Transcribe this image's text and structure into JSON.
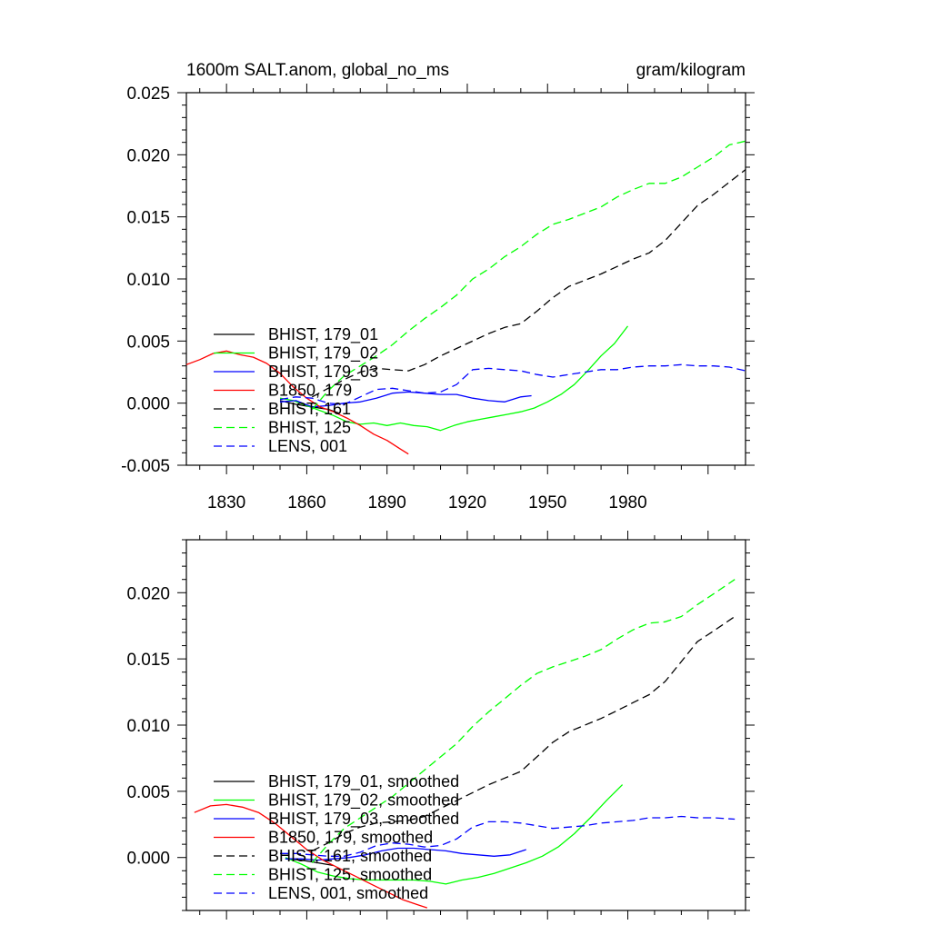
{
  "chart_data": [
    {
      "type": "line",
      "title_left": "1600m SALT.anom, global_no_ms",
      "title_right": "gram/kilogram",
      "xlim": [
        1815,
        2024
      ],
      "ylim": [
        -0.005,
        0.025
      ],
      "x_ticks": [
        "1830",
        "1860",
        "1890",
        "1920",
        "1950",
        "1980"
      ],
      "y_ticks": [
        "-0.005",
        "0.000",
        "0.005",
        "0.010",
        "0.015",
        "0.020",
        "0.025"
      ],
      "grid": false,
      "legend_position": "lower-left",
      "series": [
        {
          "name": "BHIST, 179_01",
          "color": "#000000",
          "style": "solid",
          "x": [
            1850,
            1856,
            1862,
            1868,
            1872
          ],
          "y": [
            0.0002,
            -0.0001,
            -0.0003,
            -0.0005,
            -0.0008
          ]
        },
        {
          "name": "BHIST, 179_02",
          "color": "#00ff00",
          "style": "solid",
          "x": [
            1850,
            1855,
            1860,
            1865,
            1870,
            1875,
            1880,
            1885,
            1890,
            1895,
            1900,
            1905,
            1910,
            1915,
            1920,
            1925,
            1930,
            1935,
            1940,
            1945,
            1950,
            1955,
            1960,
            1965,
            1970,
            1975,
            1980
          ],
          "y": [
            0.0004,
            0.0002,
            -0.0002,
            -0.0006,
            -0.001,
            -0.0015,
            -0.0017,
            -0.0016,
            -0.0018,
            -0.0016,
            -0.0018,
            -0.0019,
            -0.0022,
            -0.0018,
            -0.0015,
            -0.0013,
            -0.0011,
            -0.0009,
            -0.0007,
            -0.0004,
            0.0001,
            0.0007,
            0.0015,
            0.0026,
            0.0038,
            0.0048,
            0.0062
          ]
        },
        {
          "name": "BHIST, 179_03",
          "color": "#0000ff",
          "style": "solid",
          "x": [
            1850,
            1856,
            1862,
            1868,
            1874,
            1880,
            1886,
            1892,
            1898,
            1904,
            1910,
            1916,
            1922,
            1928,
            1934,
            1940,
            1944
          ],
          "y": [
            0.0001,
            0.0002,
            -0.0003,
            -0.0002,
            0.0,
            0.0001,
            0.0004,
            0.0008,
            0.0009,
            0.0008,
            0.0007,
            0.0007,
            0.0004,
            0.0002,
            0.0001,
            0.0005,
            0.0006
          ]
        },
        {
          "name": "B1850, 179",
          "color": "#ff0000",
          "style": "solid",
          "x": [
            1815,
            1820,
            1825,
            1830,
            1835,
            1840,
            1845,
            1850,
            1855,
            1860,
            1865,
            1870,
            1875,
            1880,
            1885,
            1890,
            1895,
            1898
          ],
          "y": [
            0.0031,
            0.0035,
            0.004,
            0.0042,
            0.0039,
            0.0037,
            0.0032,
            0.0024,
            0.0013,
            0.0004,
            -0.0003,
            -0.0007,
            -0.0012,
            -0.0018,
            -0.0025,
            -0.003,
            -0.0037,
            -0.0041
          ]
        },
        {
          "name": "BHIST, 161",
          "color": "#000000",
          "style": "dashed",
          "x": [
            1862,
            1868,
            1874,
            1880,
            1886,
            1892,
            1898,
            1904,
            1910,
            1916,
            1922,
            1928,
            1934,
            1940,
            1946,
            1952,
            1958,
            1964,
            1970,
            1976,
            1982,
            1988,
            1994,
            2000,
            2006,
            2012,
            2018,
            2024
          ],
          "y": [
            0.0005,
            0.0012,
            0.0019,
            0.0025,
            0.0028,
            0.0027,
            0.0026,
            0.0031,
            0.0038,
            0.0044,
            0.005,
            0.0056,
            0.0061,
            0.0064,
            0.0074,
            0.0085,
            0.0094,
            0.0099,
            0.0104,
            0.011,
            0.0116,
            0.0121,
            0.0131,
            0.0145,
            0.0159,
            0.0168,
            0.0178,
            0.0188
          ]
        },
        {
          "name": "BHIST, 125",
          "color": "#00ff00",
          "style": "dashed",
          "x": [
            1862,
            1868,
            1874,
            1880,
            1886,
            1892,
            1898,
            1904,
            1910,
            1916,
            1922,
            1928,
            1934,
            1940,
            1946,
            1952,
            1958,
            1964,
            1970,
            1976,
            1982,
            1988,
            1994,
            2000,
            2006,
            2012,
            2018,
            2024
          ],
          "y": [
            -0.0005,
            0.001,
            0.0022,
            0.003,
            0.0038,
            0.0047,
            0.0058,
            0.0068,
            0.0077,
            0.0087,
            0.01,
            0.0108,
            0.0118,
            0.0126,
            0.0136,
            0.0144,
            0.0148,
            0.0153,
            0.0158,
            0.0166,
            0.0172,
            0.0177,
            0.0177,
            0.0182,
            0.019,
            0.0198,
            0.0208,
            0.0211
          ]
        },
        {
          "name": "LENS, 001",
          "color": "#0000ff",
          "style": "dashed",
          "x": [
            1850,
            1856,
            1862,
            1868,
            1874,
            1880,
            1886,
            1892,
            1898,
            1904,
            1910,
            1916,
            1922,
            1928,
            1934,
            1940,
            1946,
            1952,
            1958,
            1964,
            1970,
            1976,
            1982,
            1988,
            1994,
            2000,
            2006,
            2012,
            2018,
            2024
          ],
          "y": [
            0.0003,
            0.0005,
            0.0004,
            0.0,
            -0.0001,
            0.0005,
            0.0011,
            0.0012,
            0.001,
            0.0008,
            0.0009,
            0.0015,
            0.0027,
            0.0028,
            0.0027,
            0.0026,
            0.0023,
            0.0021,
            0.0023,
            0.0025,
            0.0027,
            0.0027,
            0.0029,
            0.003,
            0.003,
            0.0031,
            0.003,
            0.003,
            0.0029,
            0.0026
          ]
        }
      ]
    },
    {
      "type": "line",
      "xlim": [
        1815,
        2024
      ],
      "ylim": [
        -0.004,
        0.024
      ],
      "x_ticks": [],
      "y_ticks": [
        "0.000",
        "0.005",
        "0.010",
        "0.015",
        "0.020"
      ],
      "grid": false,
      "legend_position": "lower-left",
      "series": [
        {
          "name": "BHIST, 179_01, smoothed",
          "color": "#000000",
          "style": "solid",
          "x": [
            1852,
            1858,
            1864,
            1870
          ],
          "y": [
            -0.0001,
            -0.0002,
            -0.0004,
            -0.0006
          ]
        },
        {
          "name": "BHIST, 179_02, smoothed",
          "color": "#00ff00",
          "style": "solid",
          "x": [
            1852,
            1858,
            1864,
            1870,
            1876,
            1882,
            1888,
            1894,
            1900,
            1906,
            1912,
            1918,
            1924,
            1930,
            1936,
            1942,
            1948,
            1954,
            1960,
            1966,
            1972,
            1978
          ],
          "y": [
            0.0,
            -0.0005,
            -0.0011,
            -0.0014,
            -0.0016,
            -0.0017,
            -0.0017,
            -0.0017,
            -0.0017,
            -0.0018,
            -0.002,
            -0.0017,
            -0.0015,
            -0.0012,
            -0.0008,
            -0.0004,
            0.0001,
            0.0008,
            0.0018,
            0.003,
            0.0043,
            0.0055
          ]
        },
        {
          "name": "BHIST, 179_03, smoothed",
          "color": "#0000ff",
          "style": "solid",
          "x": [
            1852,
            1858,
            1864,
            1870,
            1876,
            1882,
            1888,
            1894,
            1900,
            1906,
            1912,
            1918,
            1924,
            1930,
            1936,
            1942
          ],
          "y": [
            -0.0001,
            -0.0001,
            -0.0002,
            -0.0001,
            0.0,
            0.0002,
            0.0005,
            0.0007,
            0.0007,
            0.0006,
            0.0005,
            0.0003,
            0.0002,
            0.0001,
            0.0002,
            0.0006
          ]
        },
        {
          "name": "B1850, 179, smoothed",
          "color": "#ff0000",
          "style": "solid",
          "x": [
            1818,
            1824,
            1830,
            1836,
            1842,
            1848,
            1854,
            1860,
            1866,
            1872,
            1878,
            1884,
            1890,
            1896,
            1902,
            1905
          ],
          "y": [
            0.0034,
            0.0039,
            0.004,
            0.0038,
            0.0034,
            0.0026,
            0.0016,
            0.0006,
            -0.0002,
            -0.0008,
            -0.0014,
            -0.002,
            -0.0026,
            -0.0032,
            -0.0036,
            -0.0038
          ]
        },
        {
          "name": "BHIST, 161, smoothed",
          "color": "#000000",
          "style": "dashed",
          "x": [
            1862,
            1868,
            1874,
            1880,
            1886,
            1892,
            1898,
            1904,
            1910,
            1916,
            1922,
            1928,
            1934,
            1940,
            1946,
            1952,
            1958,
            1964,
            1970,
            1976,
            1982,
            1988,
            1994,
            2000,
            2006,
            2012,
            2020
          ],
          "y": [
            0.0005,
            0.0011,
            0.0018,
            0.0023,
            0.0026,
            0.0027,
            0.0028,
            0.0031,
            0.0037,
            0.0043,
            0.0049,
            0.0055,
            0.006,
            0.0065,
            0.0076,
            0.0087,
            0.0095,
            0.01,
            0.0105,
            0.0111,
            0.0117,
            0.0123,
            0.0133,
            0.0148,
            0.0163,
            0.0171,
            0.0182
          ]
        },
        {
          "name": "BHIST, 125, smoothed",
          "color": "#00ff00",
          "style": "dashed",
          "x": [
            1862,
            1868,
            1874,
            1880,
            1886,
            1892,
            1898,
            1904,
            1910,
            1916,
            1922,
            1928,
            1934,
            1940,
            1946,
            1952,
            1958,
            1964,
            1970,
            1976,
            1982,
            1988,
            1994,
            2000,
            2006,
            2012,
            2020
          ],
          "y": [
            -0.0004,
            0.001,
            0.0022,
            0.003,
            0.0038,
            0.0046,
            0.0056,
            0.0066,
            0.0076,
            0.0086,
            0.0099,
            0.011,
            0.012,
            0.013,
            0.0139,
            0.0144,
            0.0148,
            0.0152,
            0.0157,
            0.0165,
            0.0172,
            0.0177,
            0.0178,
            0.0182,
            0.0191,
            0.0199,
            0.021
          ]
        },
        {
          "name": "LENS, 001, smoothed",
          "color": "#0000ff",
          "style": "dashed",
          "x": [
            1850,
            1856,
            1862,
            1868,
            1874,
            1880,
            1886,
            1892,
            1898,
            1904,
            1910,
            1916,
            1922,
            1928,
            1934,
            1940,
            1946,
            1952,
            1958,
            1964,
            1970,
            1976,
            1982,
            1988,
            1994,
            2000,
            2006,
            2012,
            2020
          ],
          "y": [
            0.0003,
            0.0003,
            0.0002,
            0.0001,
            0.0001,
            0.0004,
            0.0009,
            0.0011,
            0.001,
            0.0008,
            0.0009,
            0.0014,
            0.0023,
            0.0027,
            0.0027,
            0.0026,
            0.0024,
            0.0022,
            0.0023,
            0.0024,
            0.0026,
            0.0027,
            0.0028,
            0.003,
            0.003,
            0.0031,
            0.003,
            0.003,
            0.0029
          ]
        }
      ]
    }
  ]
}
